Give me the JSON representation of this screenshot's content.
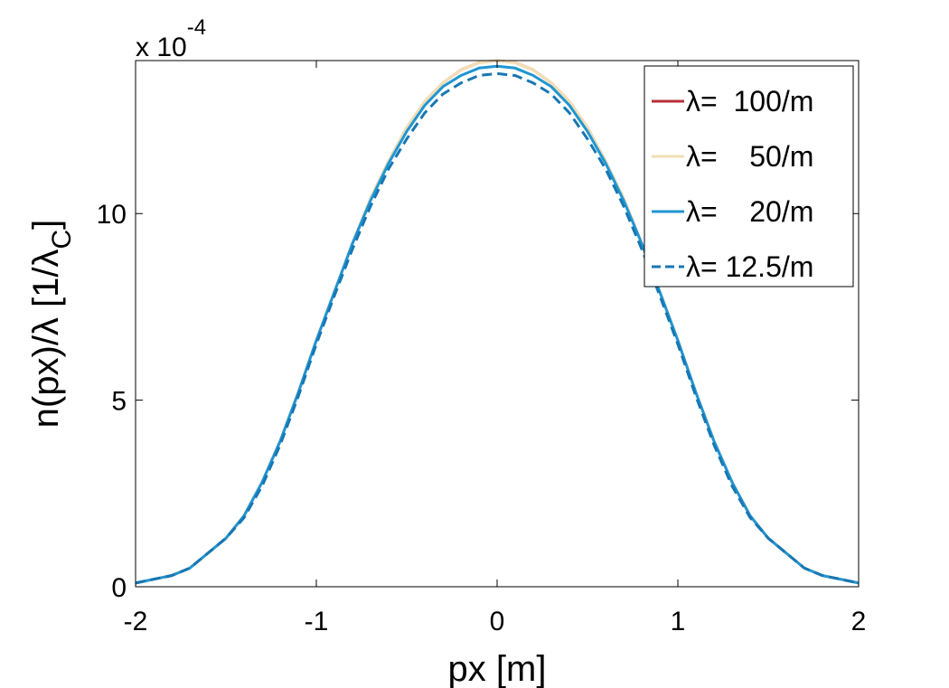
{
  "chart_data": {
    "type": "line",
    "title": "",
    "xlabel": "px [m]",
    "ylabel": "n(px)/λ [1/λ_C]",
    "ylabel_parts": {
      "main": "n(px)/λ [1/λ",
      "sub": "C",
      "close": "]"
    },
    "y_multiplier": {
      "prefix": "x 10",
      "exponent": "-4"
    },
    "xlim": [
      -2,
      2
    ],
    "ylim": [
      0,
      14.1
    ],
    "x_ticks": [
      -2,
      -1,
      0,
      1,
      2
    ],
    "x_tick_labels": [
      "-2",
      "-1",
      "0",
      "1",
      "2"
    ],
    "y_ticks": [
      0,
      5,
      10
    ],
    "y_tick_labels": [
      "0",
      "5",
      "10"
    ],
    "grid": false,
    "legend_position": "top-right",
    "series": [
      {
        "name": "λ=  100/m",
        "color": "#b5303a",
        "dash": "solid",
        "x": [
          -2.0,
          -1.9,
          -1.8,
          -1.7,
          -1.6,
          -1.5,
          -1.4,
          -1.3,
          -1.2,
          -1.1,
          -1.0,
          -0.9,
          -0.8,
          -0.7,
          -0.6,
          -0.5,
          -0.4,
          -0.3,
          -0.2,
          -0.1,
          0.0,
          0.1,
          0.2,
          0.3,
          0.4,
          0.5,
          0.6,
          0.7,
          0.8,
          0.9,
          1.0,
          1.1,
          1.2,
          1.3,
          1.4,
          1.5,
          1.6,
          1.7,
          1.8,
          1.9,
          2.0
        ],
        "y": [
          0.1,
          0.2,
          0.3,
          0.5,
          0.9,
          1.3,
          1.9,
          2.8,
          3.9,
          5.2,
          6.6,
          7.9,
          9.2,
          10.4,
          11.4,
          12.3,
          13.0,
          13.5,
          13.85,
          14.05,
          14.1,
          14.05,
          13.85,
          13.5,
          13.0,
          12.3,
          11.4,
          10.4,
          9.2,
          7.9,
          6.6,
          5.2,
          3.9,
          2.8,
          1.9,
          1.3,
          0.9,
          0.5,
          0.3,
          0.2,
          0.1
        ]
      },
      {
        "name": "λ=    50/m",
        "color": "#f2dfb4",
        "dash": "solid",
        "x": [
          -2.0,
          -1.9,
          -1.8,
          -1.7,
          -1.6,
          -1.5,
          -1.4,
          -1.3,
          -1.2,
          -1.1,
          -1.0,
          -0.9,
          -0.8,
          -0.7,
          -0.6,
          -0.5,
          -0.4,
          -0.3,
          -0.2,
          -0.1,
          0.0,
          0.1,
          0.2,
          0.3,
          0.4,
          0.5,
          0.6,
          0.7,
          0.8,
          0.9,
          1.0,
          1.1,
          1.2,
          1.3,
          1.4,
          1.5,
          1.6,
          1.7,
          1.8,
          1.9,
          2.0
        ],
        "y": [
          0.1,
          0.2,
          0.3,
          0.5,
          0.9,
          1.3,
          1.9,
          2.8,
          3.9,
          5.2,
          6.6,
          7.9,
          9.2,
          10.4,
          11.4,
          12.3,
          13.0,
          13.5,
          13.85,
          14.05,
          14.1,
          14.05,
          13.85,
          13.5,
          13.0,
          12.3,
          11.4,
          10.4,
          9.2,
          7.9,
          6.6,
          5.2,
          3.9,
          2.8,
          1.9,
          1.3,
          0.9,
          0.5,
          0.3,
          0.2,
          0.1
        ]
      },
      {
        "name": "λ=    20/m",
        "color": "#1f96d2",
        "dash": "solid",
        "x": [
          -2.0,
          -1.9,
          -1.8,
          -1.7,
          -1.6,
          -1.5,
          -1.4,
          -1.3,
          -1.2,
          -1.1,
          -1.0,
          -0.9,
          -0.8,
          -0.7,
          -0.6,
          -0.5,
          -0.4,
          -0.3,
          -0.2,
          -0.1,
          0.0,
          0.1,
          0.2,
          0.3,
          0.4,
          0.5,
          0.6,
          0.7,
          0.8,
          0.9,
          1.0,
          1.1,
          1.2,
          1.3,
          1.4,
          1.5,
          1.6,
          1.7,
          1.8,
          1.9,
          2.0
        ],
        "y": [
          0.1,
          0.2,
          0.3,
          0.5,
          0.9,
          1.3,
          1.9,
          2.8,
          3.9,
          5.2,
          6.6,
          7.9,
          9.2,
          10.35,
          11.35,
          12.2,
          12.9,
          13.4,
          13.7,
          13.9,
          13.95,
          13.9,
          13.7,
          13.4,
          12.9,
          12.2,
          11.35,
          10.35,
          9.2,
          7.9,
          6.6,
          5.2,
          3.9,
          2.8,
          1.9,
          1.3,
          0.9,
          0.5,
          0.3,
          0.2,
          0.1
        ]
      },
      {
        "name": "λ= 12.5/m",
        "color": "#1777b3",
        "dash": "dashed",
        "x": [
          -2.0,
          -1.9,
          -1.8,
          -1.7,
          -1.6,
          -1.5,
          -1.4,
          -1.3,
          -1.2,
          -1.1,
          -1.0,
          -0.9,
          -0.8,
          -0.7,
          -0.6,
          -0.5,
          -0.4,
          -0.3,
          -0.2,
          -0.1,
          0.0,
          0.1,
          0.2,
          0.3,
          0.4,
          0.5,
          0.6,
          0.7,
          0.8,
          0.9,
          1.0,
          1.1,
          1.2,
          1.3,
          1.4,
          1.5,
          1.6,
          1.7,
          1.8,
          1.9,
          2.0
        ],
        "y": [
          0.1,
          0.2,
          0.3,
          0.5,
          0.9,
          1.3,
          1.85,
          2.7,
          3.8,
          5.1,
          6.5,
          7.8,
          9.05,
          10.2,
          11.2,
          12.0,
          12.7,
          13.2,
          13.5,
          13.7,
          13.75,
          13.7,
          13.5,
          13.2,
          12.7,
          12.0,
          11.2,
          10.2,
          9.05,
          7.8,
          6.5,
          5.1,
          3.8,
          2.7,
          1.85,
          1.3,
          0.9,
          0.5,
          0.3,
          0.2,
          0.1
        ]
      }
    ]
  }
}
